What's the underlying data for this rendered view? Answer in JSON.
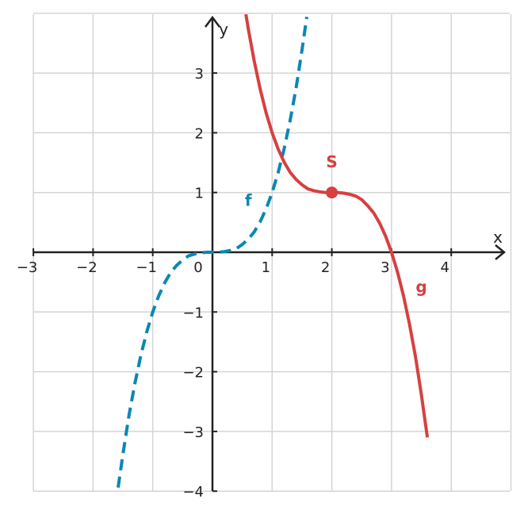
{
  "chart_data": {
    "type": "line",
    "title": "",
    "xlabel": "x",
    "ylabel": "y",
    "xlim": [
      -3,
      5
    ],
    "ylim": [
      -4,
      4
    ],
    "grid": true,
    "x_ticks": [
      "−3",
      "−2",
      "−1",
      "0",
      "1",
      "2",
      "3",
      "4"
    ],
    "y_ticks": [
      "−4",
      "−3",
      "−2",
      "−1",
      "1",
      "2",
      "3"
    ],
    "colors": {
      "f": "#0a87b5",
      "g": "#d64040",
      "grid": "#d4d4d4",
      "axis": "#222222"
    },
    "series": [
      {
        "name": "f",
        "style": "dashed",
        "color": "#0a87b5",
        "x": [
          -1.58,
          -1.5,
          -1.4,
          -1.3,
          -1.2,
          -1.1,
          -1.0,
          -0.9,
          -0.8,
          -0.7,
          -0.6,
          -0.5,
          -0.4,
          -0.3,
          -0.2,
          -0.1,
          0.0,
          0.1,
          0.2,
          0.3,
          0.4,
          0.5,
          0.6,
          0.7,
          0.8,
          0.9,
          1.0,
          1.1,
          1.2,
          1.3,
          1.4,
          1.5,
          1.58
        ],
        "y": [
          -3.94,
          -3.38,
          -2.74,
          -2.2,
          -1.73,
          -1.33,
          -1.0,
          -0.73,
          -0.51,
          -0.34,
          -0.22,
          -0.13,
          -0.06,
          -0.03,
          -0.01,
          0.0,
          0.0,
          0.0,
          0.01,
          0.03,
          0.06,
          0.13,
          0.22,
          0.34,
          0.51,
          0.73,
          1.0,
          1.33,
          1.73,
          2.2,
          2.74,
          3.38,
          3.94
        ]
      },
      {
        "name": "g",
        "style": "solid",
        "color": "#d64040",
        "x": [
          0.55,
          0.6,
          0.7,
          0.8,
          0.9,
          1.0,
          1.1,
          1.2,
          1.3,
          1.4,
          1.5,
          1.6,
          1.7,
          1.8,
          1.9,
          2.0,
          2.1,
          2.2,
          2.3,
          2.4,
          2.5,
          2.6,
          2.7,
          2.8,
          2.9,
          3.0,
          3.1,
          3.2,
          3.3,
          3.4,
          3.5,
          3.6
        ],
        "y": [
          4.05,
          3.74,
          3.2,
          2.73,
          2.33,
          2.0,
          1.73,
          1.51,
          1.34,
          1.22,
          1.13,
          1.06,
          1.03,
          1.01,
          1.0,
          1.0,
          1.0,
          0.99,
          0.97,
          0.94,
          0.88,
          0.78,
          0.66,
          0.49,
          0.27,
          0.0,
          -0.33,
          -0.73,
          -1.2,
          -1.74,
          -2.38,
          -3.1
        ]
      }
    ],
    "points": [
      {
        "name": "S",
        "x": 2,
        "y": 1,
        "color": "#d64040"
      }
    ],
    "annotations": [
      {
        "text": "f",
        "x": 0.6,
        "y": 0.78,
        "color": "#0a87b5"
      },
      {
        "text": "g",
        "x": 3.5,
        "y": -0.67,
        "color": "#d64040"
      },
      {
        "text": "S",
        "x": 2.0,
        "y": 1.42,
        "color": "#d64040"
      }
    ]
  }
}
